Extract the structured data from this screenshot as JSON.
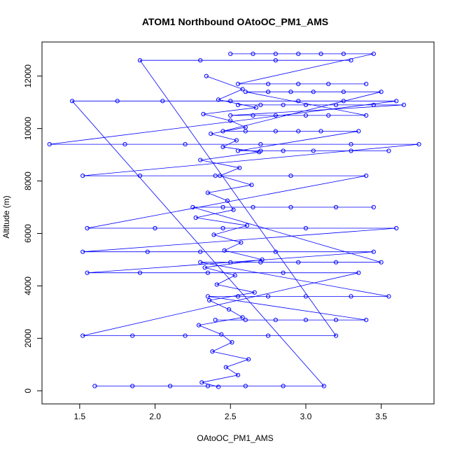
{
  "chart_data": {
    "type": "scatter",
    "title": "ATOM1 Northbound OAtoOC_PM1_AMS",
    "xlabel": "OAtoOC_PM1_AMS",
    "ylabel": "Altitude (m)",
    "xlim": [
      1.25,
      3.85
    ],
    "ylim": [
      -500,
      13300
    ],
    "x_ticks": [
      1.5,
      2.0,
      2.5,
      3.0,
      3.5
    ],
    "x_tick_labels": [
      "1.5",
      "2.0",
      "2.5",
      "3.0",
      "3.5"
    ],
    "y_ticks": [
      0,
      2000,
      4000,
      6000,
      8000,
      10000,
      12000
    ],
    "y_tick_labels": [
      "0",
      "2000",
      "4000",
      "6000",
      "8000",
      "10000",
      "12000"
    ],
    "grid": false,
    "legend": "none",
    "marker": "open-circle",
    "connected": true,
    "color": "#0000ff",
    "series": [
      {
        "x": [
          2.42,
          2.31,
          2.55,
          2.47,
          2.62,
          2.38,
          2.51,
          2.44,
          2.29,
          2.58,
          2.49,
          2.36,
          2.66,
          2.41,
          2.53,
          2.33,
          2.71,
          2.46,
          2.57,
          2.39,
          2.61,
          2.27,
          2.52,
          2.48,
          2.35,
          2.64,
          2.43,
          2.56,
          2.3,
          2.69,
          2.45,
          2.54,
          2.37,
          2.6,
          2.5,
          2.32,
          2.67,
          2.42,
          2.58,
          2.34
        ],
        "y": [
          150,
          320,
          600,
          900,
          1200,
          1500,
          1850,
          2150,
          2500,
          2800,
          3100,
          3450,
          3750,
          4050,
          4400,
          4700,
          5000,
          5350,
          5650,
          5950,
          6300,
          6600,
          6900,
          7250,
          7550,
          7850,
          8200,
          8500,
          8800,
          9100,
          9300,
          9550,
          9800,
          10050,
          10300,
          10550,
          10800,
          11100,
          11500,
          12000
        ]
      },
      {
        "x": [
          1.6,
          1.85,
          2.1,
          2.35,
          2.6,
          2.85,
          3.12,
          1.45,
          1.75,
          2.05,
          2.5,
          2.95,
          3.25,
          3.6,
          1.3,
          1.8,
          2.2,
          2.7,
          3.3,
          3.75,
          1.52,
          1.9,
          2.4,
          2.9,
          3.4,
          1.55,
          2.0,
          2.45,
          3.0,
          3.6,
          1.52,
          1.95,
          2.3,
          2.8,
          3.45,
          1.55,
          1.9,
          2.35,
          2.85,
          3.35,
          1.52,
          1.85,
          2.2,
          2.75,
          3.2,
          1.9,
          2.3,
          2.8,
          3.3
        ],
        "y": [
          180,
          180,
          180,
          180,
          180,
          180,
          180,
          11050,
          11050,
          11050,
          11050,
          11050,
          11050,
          11050,
          9400,
          9400,
          9400,
          9400,
          9400,
          9400,
          8200,
          8200,
          8200,
          8200,
          8200,
          6200,
          6200,
          6200,
          6200,
          6200,
          5300,
          5300,
          5300,
          5300,
          5300,
          4500,
          4500,
          4500,
          4500,
          4500,
          2100,
          2100,
          2100,
          2100,
          2100,
          12600,
          12600,
          12600,
          12600
        ]
      },
      {
        "x": [
          2.55,
          2.7,
          2.85,
          3.0,
          3.2,
          3.45,
          3.65,
          2.5,
          2.65,
          2.8,
          3.0,
          3.15,
          3.4,
          2.6,
          2.75,
          2.9,
          3.05,
          3.25,
          3.5,
          2.45,
          2.6,
          2.8,
          2.95,
          3.1,
          3.35,
          2.55,
          2.7,
          2.85,
          3.05,
          3.3,
          3.55
        ],
        "y": [
          10900,
          10900,
          10900,
          10900,
          10900,
          10900,
          10900,
          10500,
          10500,
          10500,
          10500,
          10500,
          10500,
          11400,
          11400,
          11400,
          11400,
          11400,
          11400,
          9900,
          9900,
          9900,
          9900,
          9900,
          9900,
          9150,
          9150,
          9150,
          9150,
          9150,
          9150
        ]
      },
      {
        "x": [
          2.4,
          2.6,
          2.8,
          3.0,
          3.2,
          3.4,
          2.35,
          2.55,
          2.75,
          3.0,
          3.3,
          3.55,
          2.3,
          2.5,
          2.7,
          2.95,
          3.2,
          3.5,
          2.25,
          2.45,
          2.65,
          2.9,
          3.2,
          3.45
        ],
        "y": [
          2700,
          2700,
          2700,
          2700,
          2700,
          2700,
          3600,
          3600,
          3600,
          3600,
          3600,
          3600,
          4900,
          4900,
          4900,
          4900,
          4900,
          4900,
          7000,
          7000,
          7000,
          7000,
          7000,
          7000
        ]
      },
      {
        "x": [
          2.5,
          2.65,
          2.8,
          2.95,
          3.1,
          3.25,
          3.45,
          2.55,
          2.75,
          2.95,
          3.15,
          3.4
        ],
        "y": [
          12850,
          12850,
          12850,
          12850,
          12850,
          12850,
          12850,
          11700,
          11700,
          11700,
          11700,
          11700
        ]
      }
    ]
  }
}
